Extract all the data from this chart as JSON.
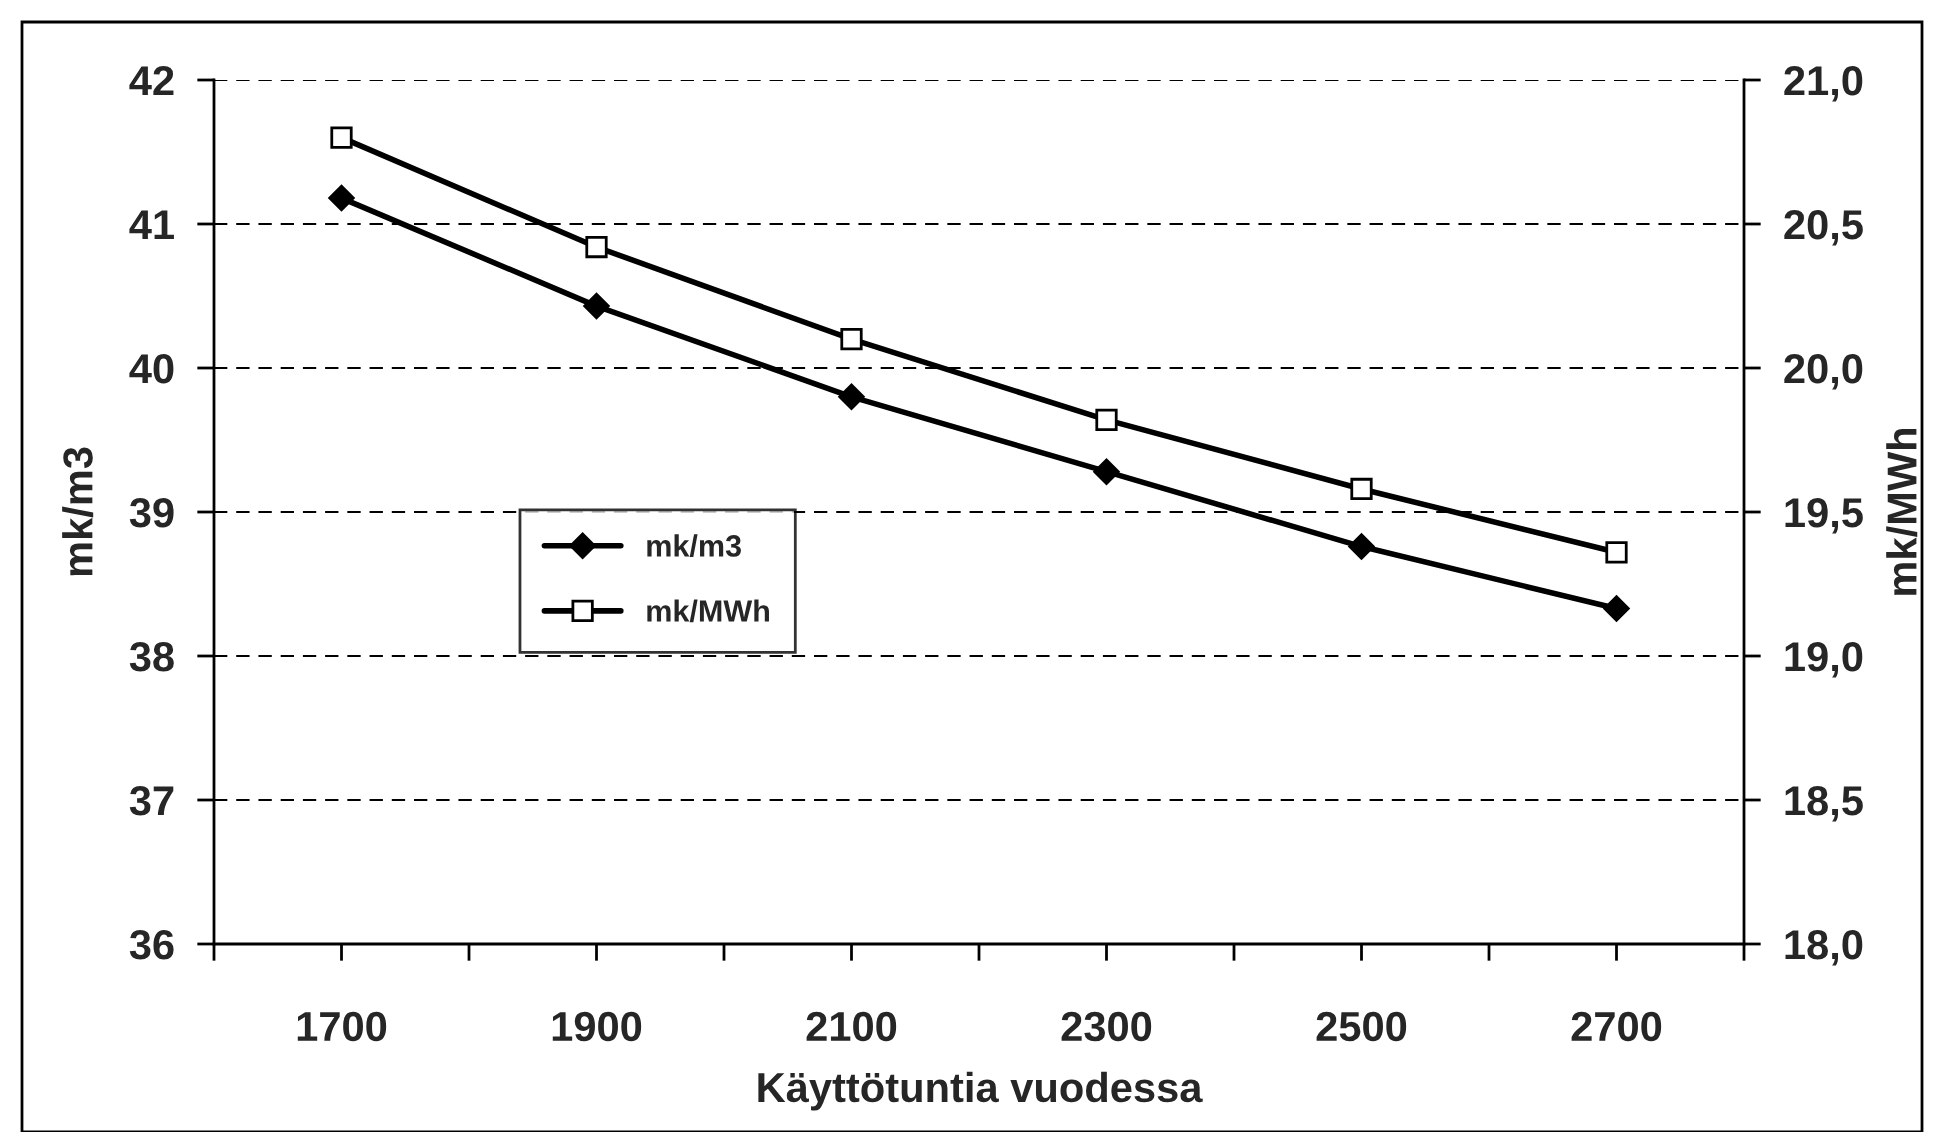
{
  "chart_data": {
    "type": "line",
    "xlabel": "Käyttötuntia vuodessa",
    "ylabel": "mk/m3",
    "y2label": "mk/MWh",
    "x": [
      1700,
      1900,
      2100,
      2300,
      2500,
      2700
    ],
    "series": [
      {
        "name": "mk/m3",
        "color": "#000000",
        "marker": "diamond",
        "values": [
          41.18,
          40.43,
          39.8,
          39.28,
          38.76,
          38.33
        ]
      },
      {
        "name": "mk/MWh",
        "color": "#000000",
        "marker": "square",
        "axis": "y2",
        "values": [
          20.8,
          20.42,
          20.1,
          19.82,
          19.58,
          19.36
        ]
      }
    ],
    "xlim": [
      1600,
      2800
    ],
    "xticks": [
      {
        "value": 1600,
        "label": null
      },
      1700,
      {
        "value": 1800,
        "label": null
      },
      1900,
      {
        "value": 2000,
        "label": null
      },
      2100,
      {
        "value": 2200,
        "label": null
      },
      2300,
      {
        "value": 2400,
        "label": null
      },
      2500,
      {
        "value": 2600,
        "label": null
      },
      2700,
      {
        "value": 2800,
        "label": null
      }
    ],
    "ylim": [
      36,
      42
    ],
    "yticks": [
      36,
      37,
      38,
      39,
      40,
      41,
      42
    ],
    "y2lim": [
      18,
      21
    ],
    "y2ticks": [
      {
        "value": 18,
        "label": "18,0"
      },
      {
        "value": 18.5,
        "label": "18,5"
      },
      {
        "value": 19,
        "label": "19,0"
      },
      {
        "value": 19.5,
        "label": "19,5"
      },
      {
        "value": 20,
        "label": "20,0"
      },
      {
        "value": 20.5,
        "label": "20,5"
      },
      {
        "value": 21,
        "label": "21,0"
      }
    ],
    "grid": "y",
    "line_style": "solid",
    "legend": "left"
  }
}
